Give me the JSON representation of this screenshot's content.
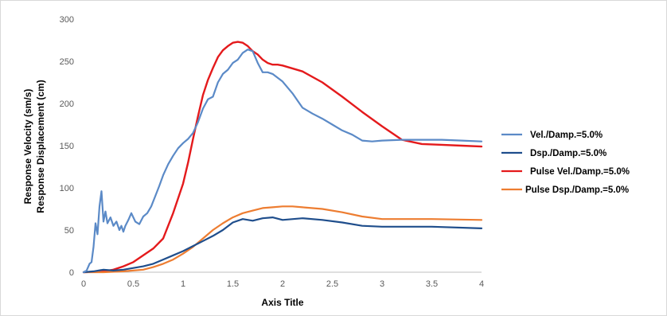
{
  "chart_data": {
    "type": "line",
    "title": "",
    "xlabel": "Axis Title",
    "ylabel_lines": [
      "Response Velocity (sm/s)",
      "Response Displacement (cm)"
    ],
    "xlim": [
      0,
      4
    ],
    "ylim": [
      0,
      300
    ],
    "xticks": [
      "0",
      "0.5",
      "1",
      "1.5",
      "2",
      "2.5",
      "3",
      "3.5",
      "4"
    ],
    "yticks": [
      "0",
      "50",
      "100",
      "150",
      "200",
      "250",
      "300"
    ],
    "xtick_values": [
      0,
      0.5,
      1,
      1.5,
      2,
      2.5,
      3,
      3.5,
      4
    ],
    "ytick_values": [
      0,
      50,
      100,
      150,
      200,
      250,
      300
    ],
    "grid": "none",
    "legend_position": "right",
    "series": [
      {
        "name": "Vel./Damp.=5.0%",
        "color": "#5b8ac7",
        "x": [
          0,
          0.03,
          0.06,
          0.08,
          0.1,
          0.12,
          0.14,
          0.16,
          0.18,
          0.2,
          0.22,
          0.24,
          0.27,
          0.3,
          0.33,
          0.36,
          0.38,
          0.4,
          0.42,
          0.45,
          0.48,
          0.52,
          0.56,
          0.6,
          0.64,
          0.68,
          0.72,
          0.76,
          0.8,
          0.85,
          0.9,
          0.95,
          1.0,
          1.05,
          1.1,
          1.15,
          1.2,
          1.25,
          1.3,
          1.35,
          1.4,
          1.45,
          1.5,
          1.55,
          1.6,
          1.65,
          1.7,
          1.75,
          1.8,
          1.85,
          1.9,
          2.0,
          2.1,
          2.2,
          2.3,
          2.4,
          2.5,
          2.6,
          2.7,
          2.8,
          2.9,
          3.0,
          3.2,
          3.4,
          3.6,
          3.8,
          4.0
        ],
        "y": [
          0,
          2,
          10,
          12,
          30,
          58,
          45,
          78,
          96,
          60,
          72,
          58,
          65,
          55,
          60,
          50,
          55,
          48,
          55,
          62,
          70,
          60,
          57,
          66,
          70,
          78,
          90,
          102,
          115,
          128,
          138,
          147,
          153,
          158,
          165,
          178,
          194,
          205,
          208,
          225,
          235,
          240,
          248,
          252,
          260,
          264,
          262,
          248,
          237,
          237,
          235,
          226,
          212,
          195,
          188,
          182,
          175,
          168,
          163,
          156,
          155,
          156,
          157,
          157,
          157,
          156,
          155
        ]
      },
      {
        "name": "Dsp./Damp.=5.0%",
        "color": "#1f4e8c",
        "x": [
          0,
          0.1,
          0.2,
          0.3,
          0.4,
          0.5,
          0.6,
          0.7,
          0.8,
          0.9,
          1.0,
          1.1,
          1.2,
          1.3,
          1.4,
          1.5,
          1.6,
          1.7,
          1.8,
          1.9,
          2.0,
          2.2,
          2.4,
          2.6,
          2.8,
          3.0,
          3.5,
          4.0
        ],
        "y": [
          0,
          1,
          3,
          2,
          3,
          5,
          7,
          10,
          15,
          20,
          25,
          31,
          37,
          43,
          50,
          59,
          63,
          61,
          64,
          65,
          62,
          64,
          62,
          59,
          55,
          54,
          54,
          52
        ]
      },
      {
        "name": "Pulse Vel./Damp.=5.0%",
        "color": "#e41a1c",
        "x": [
          0,
          0.2,
          0.3,
          0.4,
          0.5,
          0.6,
          0.7,
          0.8,
          0.9,
          1.0,
          1.05,
          1.1,
          1.15,
          1.2,
          1.25,
          1.3,
          1.35,
          1.4,
          1.45,
          1.5,
          1.55,
          1.6,
          1.65,
          1.7,
          1.75,
          1.8,
          1.85,
          1.9,
          1.95,
          2.0,
          2.2,
          2.4,
          2.6,
          2.8,
          3.0,
          3.2,
          3.4,
          3.6,
          3.8,
          4.0
        ],
        "y": [
          0,
          1,
          3,
          7,
          12,
          20,
          28,
          40,
          70,
          105,
          130,
          158,
          185,
          210,
          228,
          242,
          255,
          263,
          268,
          272,
          273,
          272,
          268,
          262,
          258,
          252,
          248,
          246,
          246,
          245,
          238,
          225,
          208,
          190,
          173,
          157,
          152,
          151,
          150,
          149
        ]
      },
      {
        "name": "Pulse Dsp./Damp.=5.0%",
        "color": "#ed7d31",
        "x": [
          0,
          0.2,
          0.4,
          0.6,
          0.7,
          0.8,
          0.9,
          1.0,
          1.1,
          1.2,
          1.3,
          1.4,
          1.5,
          1.6,
          1.7,
          1.8,
          1.9,
          2.0,
          2.1,
          2.2,
          2.4,
          2.6,
          2.8,
          3.0,
          3.5,
          4.0
        ],
        "y": [
          0,
          0,
          1,
          3,
          6,
          10,
          15,
          22,
          30,
          40,
          50,
          58,
          65,
          70,
          73,
          76,
          77,
          78,
          78,
          77,
          75,
          71,
          66,
          63,
          63,
          62
        ]
      }
    ]
  }
}
